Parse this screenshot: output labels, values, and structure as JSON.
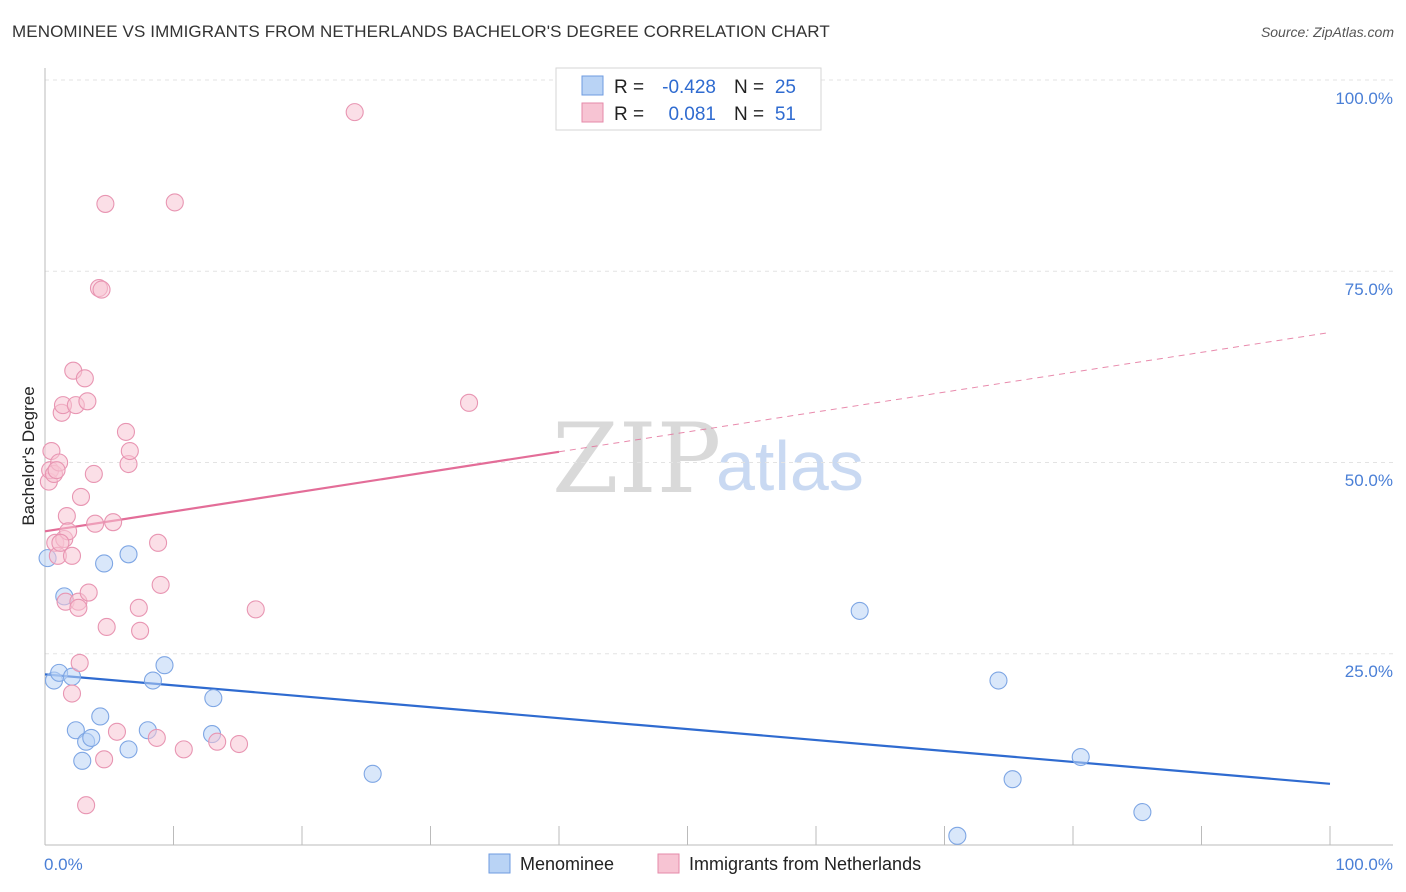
{
  "title": "MENOMINEE VS IMMIGRANTS FROM NETHERLANDS BACHELOR'S DEGREE CORRELATION CHART",
  "source": "Source: ZipAtlas.com",
  "watermark": {
    "part1": "ZIP",
    "part2": "atlas"
  },
  "colors": {
    "blue": "#2f6bd0",
    "blue_fill": "#b9d3f5",
    "pink": "#e36d98",
    "pink_fill": "#f7c4d3",
    "grid": "#e3e3e3",
    "tick": "#4a7fd6"
  },
  "legend": {
    "r_label": "R =",
    "n_label": "N =",
    "rows": [
      {
        "r": "-0.428",
        "n": "25"
      },
      {
        "r": "0.081",
        "n": "51"
      }
    ]
  },
  "chart_data": {
    "type": "scatter",
    "title": "MENOMINEE VS IMMIGRANTS FROM NETHERLANDS BACHELOR'S DEGREE CORRELATION CHART",
    "xlabel": "",
    "ylabel": "Bachelor's Degree",
    "xlim": [
      0,
      100
    ],
    "ylim": [
      0,
      100
    ],
    "x_tick_labels": [
      "0.0%",
      "100.0%"
    ],
    "y_tick_labels": [
      "100.0%",
      "75.0%",
      "50.0%",
      "25.0%"
    ],
    "y_ticks": [
      100,
      75,
      50,
      25
    ],
    "grid": true,
    "series": [
      {
        "name": "Menominee",
        "color": "#2f6bd0",
        "points": [
          [
            0.2,
            37.5
          ],
          [
            0.7,
            21.5
          ],
          [
            1.1,
            22.5
          ],
          [
            1.5,
            32.5
          ],
          [
            2.1,
            22.0
          ],
          [
            2.4,
            15.0
          ],
          [
            2.9,
            11.0
          ],
          [
            3.2,
            13.5
          ],
          [
            3.6,
            14.0
          ],
          [
            4.3,
            16.8
          ],
          [
            4.6,
            36.8
          ],
          [
            6.5,
            12.5
          ],
          [
            6.5,
            38.0
          ],
          [
            8.0,
            15.0
          ],
          [
            8.4,
            21.5
          ],
          [
            9.3,
            23.5
          ],
          [
            13.0,
            14.5
          ],
          [
            13.1,
            19.2
          ],
          [
            25.5,
            9.3
          ],
          [
            63.4,
            30.6
          ],
          [
            74.2,
            21.5
          ],
          [
            75.3,
            8.6
          ],
          [
            80.6,
            11.5
          ],
          [
            85.4,
            4.3
          ],
          [
            71.0,
            1.2
          ]
        ],
        "trend": {
          "x": [
            0,
            100
          ],
          "y": [
            22.3,
            8.0
          ],
          "dashed_from": null
        }
      },
      {
        "name": "Immigrants from Netherlands",
        "color": "#e36d98",
        "points": [
          [
            0.3,
            47.5
          ],
          [
            0.4,
            49.0
          ],
          [
            0.5,
            51.5
          ],
          [
            0.7,
            48.5
          ],
          [
            0.8,
            39.5
          ],
          [
            1.0,
            37.8
          ],
          [
            1.1,
            50.0
          ],
          [
            1.3,
            56.5
          ],
          [
            1.4,
            57.5
          ],
          [
            1.5,
            40.0
          ],
          [
            1.6,
            31.8
          ],
          [
            1.7,
            43.0
          ],
          [
            1.8,
            41.0
          ],
          [
            2.1,
            37.8
          ],
          [
            2.1,
            19.8
          ],
          [
            2.2,
            62.0
          ],
          [
            2.4,
            57.5
          ],
          [
            2.6,
            31.8
          ],
          [
            2.6,
            31.0
          ],
          [
            2.7,
            23.8
          ],
          [
            2.8,
            45.5
          ],
          [
            3.1,
            61.0
          ],
          [
            3.2,
            5.2
          ],
          [
            3.3,
            58.0
          ],
          [
            3.4,
            33.0
          ],
          [
            3.8,
            48.5
          ],
          [
            3.9,
            42.0
          ],
          [
            4.2,
            72.8
          ],
          [
            4.4,
            72.6
          ],
          [
            4.6,
            11.2
          ],
          [
            4.7,
            83.8
          ],
          [
            4.8,
            28.5
          ],
          [
            5.3,
            42.2
          ],
          [
            5.6,
            14.8
          ],
          [
            6.3,
            54.0
          ],
          [
            6.5,
            49.8
          ],
          [
            6.6,
            51.5
          ],
          [
            7.3,
            31.0
          ],
          [
            7.4,
            28.0
          ],
          [
            8.7,
            14.0
          ],
          [
            8.8,
            39.5
          ],
          [
            9.0,
            34.0
          ],
          [
            10.1,
            84.0
          ],
          [
            10.8,
            12.5
          ],
          [
            13.4,
            13.5
          ],
          [
            15.1,
            13.2
          ],
          [
            16.4,
            30.8
          ],
          [
            24.1,
            95.8
          ],
          [
            33.0,
            57.8
          ],
          [
            0.9,
            49.0
          ],
          [
            1.2,
            39.5
          ]
        ],
        "trend": {
          "x": [
            0,
            100
          ],
          "y": [
            41.0,
            67.0
          ],
          "dashed_from": 40
        }
      }
    ]
  }
}
